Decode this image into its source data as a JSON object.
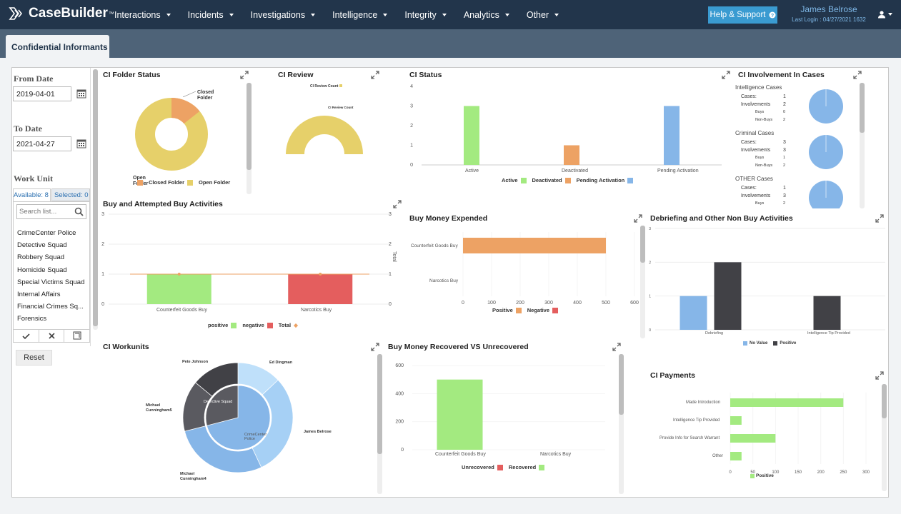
{
  "app": {
    "name": "CaseBuilder",
    "tm": "™"
  },
  "nav": [
    {
      "label": "Interactions"
    },
    {
      "label": "Incidents"
    },
    {
      "label": "Investigations"
    },
    {
      "label": "Intelligence"
    },
    {
      "label": "Integrity"
    },
    {
      "label": "Analytics"
    },
    {
      "label": "Other"
    }
  ],
  "header": {
    "help": "Help & Support",
    "user_name": "James Belrose",
    "last_login": "Last Login : 04/27/2021 1632"
  },
  "page": {
    "tab": "Confidential Informants"
  },
  "filters": {
    "from_label": "From Date",
    "from_value": "2019-04-01",
    "to_label": "To Date",
    "to_value": "2021-04-27",
    "work_unit_label": "Work Unit",
    "available": "Available: 8",
    "selected": "Selected: 0",
    "search_placeholder": "Search list...",
    "reset": "Reset",
    "units": [
      "CrimeCenter Police",
      "Detective Squad",
      "Robbery Squad",
      "Homicide Squad",
      "Special Victims Squad",
      "Internal Affairs",
      "Financial Crimes Sq...",
      "Forensics"
    ]
  },
  "panels": {
    "folder": {
      "title": "CI Folder Status",
      "closed_label1": "Closed",
      "closed_label2": "Folder",
      "open_label1": "Open",
      "open_label2": "Folder",
      "legend": [
        "Closed Folder",
        "Open Folder"
      ]
    },
    "review": {
      "title": "CI Review",
      "legend": "CI Review Count",
      "label": "CI Review Count"
    },
    "status": {
      "title": "CI Status",
      "yticks": [
        "4",
        "3",
        "2",
        "1",
        "0"
      ],
      "cats": [
        "Active",
        "Deactivated",
        "Pending Activation"
      ],
      "legend": [
        "Active",
        "Deactivated",
        "Pending Activation"
      ]
    },
    "involvement": {
      "title": "CI Involvement In Cases",
      "groups": [
        {
          "name": "Intelligence Cases",
          "rows": [
            [
              "Cases:",
              "1"
            ],
            [
              "Involvements",
              "2"
            ],
            [
              "Buys",
              "0"
            ],
            [
              "Non-Buys",
              "2"
            ]
          ]
        },
        {
          "name": "Criminal Cases",
          "rows": [
            [
              "Cases:",
              "3"
            ],
            [
              "Involvements",
              "3"
            ],
            [
              "Buys",
              "1"
            ],
            [
              "Non-Buys",
              "2"
            ]
          ]
        },
        {
          "name": "OTHER Cases",
          "rows": [
            [
              "Cases:",
              "1"
            ],
            [
              "Involvements",
              "3"
            ],
            [
              "Buys",
              "2"
            ]
          ]
        }
      ]
    },
    "buy": {
      "title": "Buy and Attempted Buy Activities",
      "yticks": [
        "3",
        "2",
        "1",
        "0"
      ],
      "y2label": "Total",
      "cats": [
        "Counterfeit Goods Buy",
        "Narcotics Buy"
      ],
      "legend": [
        "positive",
        "negative",
        "Total"
      ]
    },
    "money": {
      "title": "Buy Money Expended",
      "cats": [
        "Counterfeit Goods Buy",
        "Narcotics Buy"
      ],
      "xticks": [
        "0",
        "100",
        "200",
        "300",
        "400",
        "500",
        "600"
      ],
      "legend": [
        "Positive",
        "Negative"
      ]
    },
    "debrief": {
      "title": "Debriefing and Other Non Buy Activities",
      "yticks": [
        "3",
        "2",
        "1",
        "0"
      ],
      "cats": [
        "Debriefing",
        "Intelligence Tip Provided"
      ],
      "legend": [
        "No Value",
        "Positive"
      ]
    },
    "workunits": {
      "title": "CI Workunits",
      "labels": [
        "Pete Johnson",
        "Ed Dingman",
        "Michael Cunningham5",
        "James Belrose",
        "Michael Cunningham4"
      ],
      "inner": [
        "Detective Squad",
        "CrimeCenter Police"
      ]
    },
    "recovered": {
      "title": "Buy Money Recovered VS Unrecovered",
      "yticks": [
        "600",
        "400",
        "200",
        "0"
      ],
      "cats": [
        "Counterfeit Goods Buy",
        "Narcotics Buy"
      ],
      "legend": [
        "Unrecovered",
        "Recovered"
      ]
    },
    "payments": {
      "title": "CI Payments",
      "cats": [
        "Made Introduction",
        "Intelligence Tip Provided",
        "Provide Info for Search Warrant",
        "Other"
      ],
      "xticks": [
        "0",
        "50",
        "100",
        "150",
        "200",
        "250",
        "300"
      ],
      "legend": [
        "Positive"
      ]
    }
  },
  "chart_data": [
    {
      "type": "pie",
      "title": "CI Folder Status",
      "labels": [
        "Closed Folder",
        "Open Folder"
      ],
      "values": [
        1,
        10
      ],
      "colors": [
        "#eda264",
        "#e6d06a"
      ]
    },
    {
      "type": "pie",
      "title": "CI Review",
      "labels": [
        "CI Review Count"
      ],
      "values": [
        1
      ],
      "colors": [
        "#e6d06a"
      ]
    },
    {
      "type": "bar",
      "title": "CI Status",
      "categories": [
        "Active",
        "Deactivated",
        "Pending Activation"
      ],
      "series": [
        {
          "name": "Active",
          "values": [
            3,
            0,
            0
          ]
        },
        {
          "name": "Deactivated",
          "values": [
            0,
            1,
            0
          ]
        },
        {
          "name": "Pending Activation",
          "values": [
            0,
            0,
            3
          ]
        }
      ],
      "ylim": [
        0,
        4
      ],
      "colors": [
        "#a3ea80",
        "#eda264",
        "#86b6e8"
      ]
    },
    {
      "type": "bar",
      "title": "Buy and Attempted Buy Activities",
      "categories": [
        "Counterfeit Goods Buy",
        "Narcotics Buy"
      ],
      "series": [
        {
          "name": "positive",
          "values": [
            1,
            0
          ]
        },
        {
          "name": "negative",
          "values": [
            0,
            1
          ]
        },
        {
          "name": "Total",
          "values": [
            1,
            1
          ]
        }
      ],
      "ylim": [
        0,
        3
      ],
      "colors": [
        "#a3ea80",
        "#e45e5e",
        "#eda264"
      ]
    },
    {
      "type": "bar",
      "title": "Buy Money Expended",
      "categories": [
        "Counterfeit Goods Buy",
        "Narcotics Buy"
      ],
      "series": [
        {
          "name": "Positive",
          "values": [
            500,
            0
          ]
        },
        {
          "name": "Negative",
          "values": [
            0,
            0
          ]
        }
      ],
      "xlim": [
        0,
        600
      ],
      "colors": [
        "#eda264",
        "#e45e5e"
      ]
    },
    {
      "type": "bar",
      "title": "Debriefing and Other Non Buy Activities",
      "categories": [
        "Debriefing",
        "Intelligence Tip Provided"
      ],
      "series": [
        {
          "name": "No Value",
          "values": [
            1,
            0
          ]
        },
        {
          "name": "Positive",
          "values": [
            2,
            1
          ]
        }
      ],
      "ylim": [
        0,
        3
      ],
      "colors": [
        "#86b6e8",
        "#414146"
      ]
    },
    {
      "type": "pie",
      "title": "CI Workunits",
      "labels": [
        "Pete Johnson",
        "Ed Dingman",
        "James Belrose",
        "Michael Cunningham4",
        "Michael Cunningham5"
      ],
      "values": [
        1,
        1,
        2,
        2,
        1
      ]
    },
    {
      "type": "bar",
      "title": "Buy Money Recovered VS Unrecovered",
      "categories": [
        "Counterfeit Goods Buy",
        "Narcotics Buy"
      ],
      "series": [
        {
          "name": "Unrecovered",
          "values": [
            0,
            0
          ]
        },
        {
          "name": "Recovered",
          "values": [
            500,
            0
          ]
        }
      ],
      "ylim": [
        0,
        600
      ],
      "colors": [
        "#e45e5e",
        "#a3ea80"
      ]
    },
    {
      "type": "bar",
      "title": "CI Payments",
      "categories": [
        "Made Introduction",
        "Intelligence Tip Provided",
        "Provide Info for Search Warrant",
        "Other"
      ],
      "series": [
        {
          "name": "Positive",
          "values": [
            250,
            25,
            100,
            25
          ]
        }
      ],
      "xlim": [
        0,
        300
      ],
      "colors": [
        "#a3ea80"
      ]
    }
  ]
}
